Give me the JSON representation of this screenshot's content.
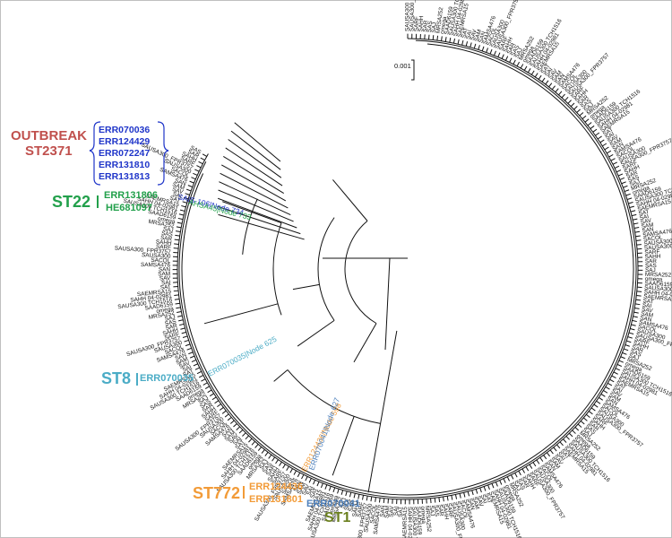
{
  "scale_bar": {
    "label": "0.001"
  },
  "outbreak": {
    "title": "OUTBREAK",
    "st": "ST2371",
    "isolates": [
      "ERR070036",
      "ERR124429",
      "ERR072247",
      "ERR131810",
      "ERR131813"
    ],
    "color": "#c0504d",
    "isolate_color": "#1f35c9"
  },
  "st22": {
    "label": "ST22",
    "isolates": [
      "ERR131806",
      "HE681097"
    ],
    "color": "#22a04b"
  },
  "st8": {
    "label": "ST8",
    "isolate": "ERR070035",
    "color": "#4bacc6"
  },
  "st772": {
    "label": "ST772",
    "isolates": [
      "ERR124436",
      "ERR131801"
    ],
    "color": "#f29b38"
  },
  "st1": {
    "label": "ST1",
    "isolate": "ERR070041",
    "color_label": "#6a7f1e",
    "color_isolate": "#4f81bd"
  },
  "tree_highlights": [
    {
      "text": "SAIS-106|Node 734",
      "color": "#1f35c9"
    },
    {
      "text": "AHSA45|Node 733",
      "color": "#22a04b"
    },
    {
      "text": "ERR070035|Node 625",
      "color": "#4bacc6"
    },
    {
      "text": "ERR124436|Node 598",
      "color": "#f29b38"
    },
    {
      "text": "ERR070041|Node 627",
      "color": "#4f81bd"
    }
  ],
  "tip_labels": [
    "SAUSA300",
    "SAUSA300_FPR3757",
    "SARF",
    "SAHH",
    "SAR",
    "SAS",
    "SAJ",
    "MRSA252",
    "omega",
    "SAAD6159",
    "SAUSA300 TCH1516",
    "SAHH 04-02981",
    "SAEMRSA15",
    "SAT",
    "SAI",
    "SAV",
    "SAM",
    "SAN",
    "SAMSA476",
    "SACOL"
  ]
}
